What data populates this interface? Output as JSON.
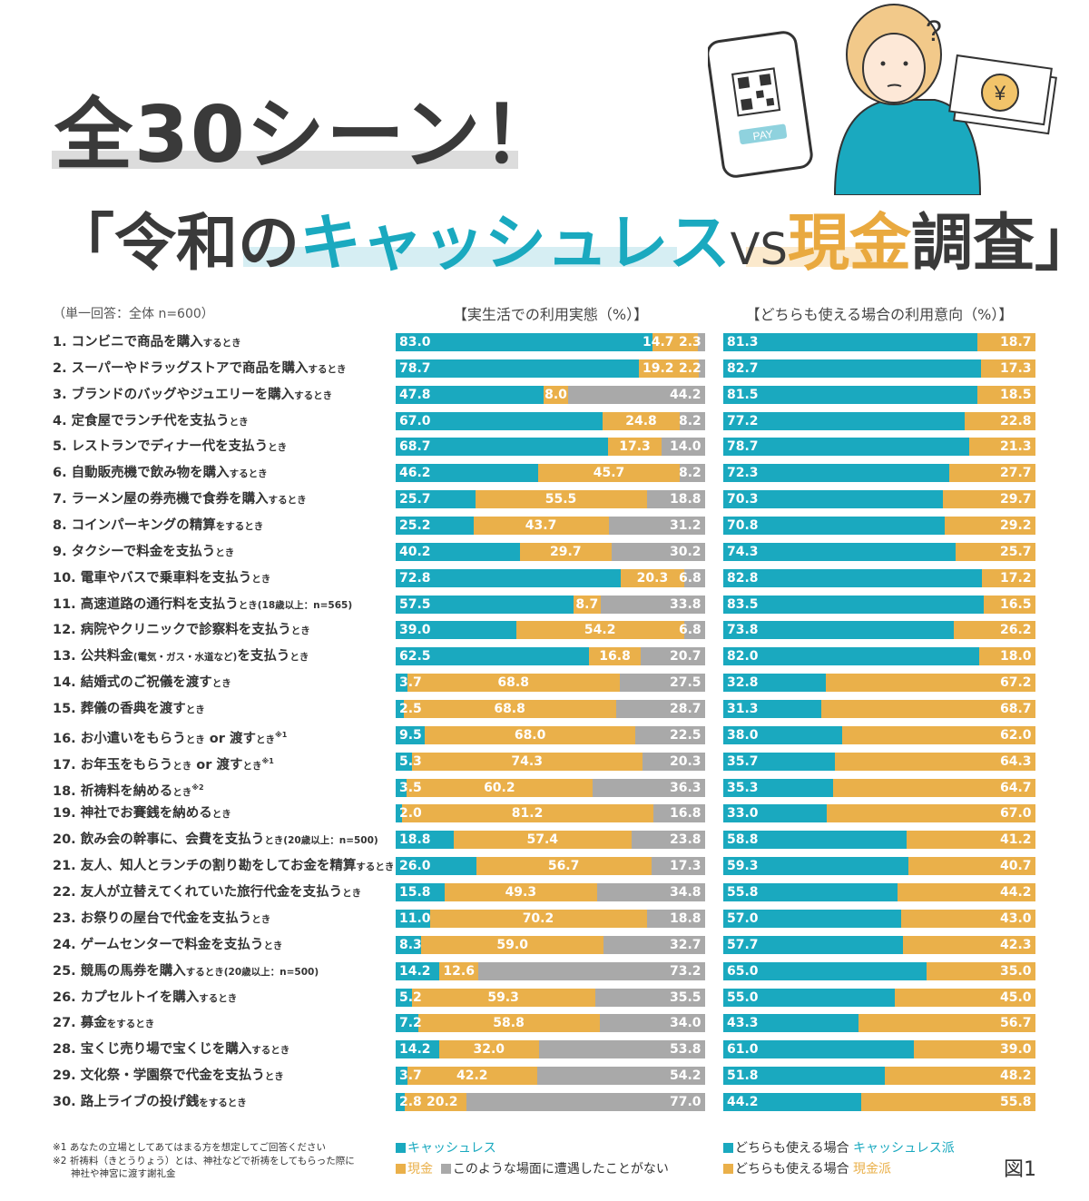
{
  "header": {
    "title_line1": "全30シーン！",
    "title_line2_open": "「令和の",
    "title_line2_cashless": "キャッシュレス",
    "title_line2_vs": "VS",
    "title_line2_cash": "現金",
    "title_line2_rest": "調査",
    "title_line2_close": "」",
    "illustration_pay_label": "PAY",
    "illustration_yen": "¥",
    "illustration_question": "?"
  },
  "colors": {
    "cashless": "#1aa9bf",
    "cash": "#eab04a",
    "never": "#a9a9a9"
  },
  "chart_data": [
    {
      "type": "bar",
      "stacked": true,
      "orientation": "horizontal",
      "title": "【実生活での利用実態（%）】",
      "subtitle": "（単一回答：全体 n=600）",
      "series": [
        {
          "name": "キャッシュレス",
          "values": [
            83.0,
            78.7,
            47.8,
            67.0,
            68.7,
            46.2,
            25.7,
            25.2,
            40.2,
            72.8,
            57.5,
            39.0,
            62.5,
            3.7,
            2.5,
            9.5,
            5.3,
            3.5,
            2.0,
            18.8,
            26.0,
            15.8,
            11.0,
            8.3,
            14.2,
            5.2,
            7.2,
            14.2,
            3.7,
            2.8
          ]
        },
        {
          "name": "現金",
          "values": [
            14.7,
            19.2,
            8.0,
            24.8,
            17.3,
            45.7,
            55.5,
            43.7,
            29.7,
            20.3,
            8.7,
            54.2,
            16.8,
            68.8,
            68.8,
            68.0,
            74.3,
            60.2,
            81.2,
            57.4,
            56.7,
            49.3,
            70.2,
            59.0,
            12.6,
            59.3,
            58.8,
            32.0,
            42.2,
            20.2
          ]
        },
        {
          "name": "このような場面に遭遇したことがない",
          "values": [
            2.3,
            2.2,
            44.2,
            8.2,
            14.0,
            8.2,
            18.8,
            31.2,
            30.2,
            6.8,
            33.8,
            6.8,
            20.7,
            27.5,
            28.7,
            22.5,
            20.3,
            36.3,
            16.8,
            23.8,
            17.3,
            34.8,
            18.8,
            32.7,
            73.2,
            35.5,
            34.0,
            53.8,
            54.2,
            77.0
          ]
        }
      ],
      "xlim": [
        0,
        100
      ]
    },
    {
      "type": "bar",
      "stacked": true,
      "orientation": "horizontal",
      "title": "【どちらも使える場合の利用意向（%）】",
      "series": [
        {
          "name": "どちらも使える場合 キャッシュレス派",
          "values": [
            81.3,
            82.7,
            81.5,
            77.2,
            78.7,
            72.3,
            70.3,
            70.8,
            74.3,
            82.8,
            83.5,
            73.8,
            82.0,
            32.8,
            31.3,
            38.0,
            35.7,
            35.3,
            33.0,
            58.8,
            59.3,
            55.8,
            57.0,
            57.7,
            65.0,
            55.0,
            43.3,
            61.0,
            51.8,
            44.2
          ]
        },
        {
          "name": "どちらも使える場合 現金派",
          "values": [
            18.7,
            17.3,
            18.5,
            22.8,
            21.3,
            27.7,
            29.7,
            29.2,
            25.7,
            17.2,
            16.5,
            26.2,
            18.0,
            67.2,
            68.7,
            62.0,
            64.3,
            64.7,
            67.0,
            41.2,
            40.7,
            44.2,
            43.0,
            42.3,
            35.0,
            45.0,
            56.7,
            39.0,
            48.2,
            55.8
          ]
        }
      ],
      "xlim": [
        0,
        100
      ]
    }
  ],
  "rows": [
    [
      [
        "1. コンビニで商品を購入",
        0
      ],
      [
        "するとき",
        1
      ]
    ],
    [
      [
        "2. スーパーやドラッグストアで商品を購入",
        0
      ],
      [
        "するとき",
        1
      ]
    ],
    [
      [
        "3. ブランドのバッグやジュエリーを購入",
        0
      ],
      [
        "するとき",
        1
      ]
    ],
    [
      [
        "4. 定食屋でランチ代を支払う",
        0
      ],
      [
        "とき",
        1
      ]
    ],
    [
      [
        "5. レストランでディナー代を支払う",
        0
      ],
      [
        "とき",
        1
      ]
    ],
    [
      [
        "6. 自動販売機で飲み物を購入",
        0
      ],
      [
        "するとき",
        1
      ]
    ],
    [
      [
        "7. ラーメン屋の券売機で食券を購入",
        0
      ],
      [
        "するとき",
        1
      ]
    ],
    [
      [
        "8. コインパーキングの精算",
        0
      ],
      [
        "をするとき",
        1
      ]
    ],
    [
      [
        "9. タクシーで料金を支払う",
        0
      ],
      [
        "とき",
        1
      ]
    ],
    [
      [
        "10. 電車やバスで乗車料を支払う",
        0
      ],
      [
        "とき",
        1
      ]
    ],
    [
      [
        "11. 高速道路の通行料を支払う",
        0
      ],
      [
        "とき(18歳以上：n=565)",
        1
      ]
    ],
    [
      [
        "12. 病院やクリニックで診察料を支払う",
        0
      ],
      [
        "とき",
        1
      ]
    ],
    [
      [
        "13. 公共料金",
        0
      ],
      [
        "(電気・ガス・水道など)",
        1
      ],
      [
        "を支払う",
        0
      ],
      [
        "とき",
        1
      ]
    ],
    [
      [
        "14. 結婚式のご祝儀を渡す",
        0
      ],
      [
        "とき",
        1
      ]
    ],
    [
      [
        "15. 葬儀の香典を渡す",
        0
      ],
      [
        "とき",
        1
      ]
    ],
    [
      [
        "16. お小遣いをもらう",
        0
      ],
      [
        "とき",
        1
      ],
      [
        " or 渡す",
        0
      ],
      [
        "とき",
        1
      ],
      [
        "※1",
        2
      ]
    ],
    [
      [
        "17. お年玉をもらう",
        0
      ],
      [
        "とき",
        1
      ],
      [
        " or 渡す",
        0
      ],
      [
        "とき",
        1
      ],
      [
        "※1",
        2
      ]
    ],
    [
      [
        "18. 祈祷料を納める",
        0
      ],
      [
        "とき",
        1
      ],
      [
        "※2",
        2
      ]
    ],
    [
      [
        "19. 神社でお賽銭を納める",
        0
      ],
      [
        "とき",
        1
      ]
    ],
    [
      [
        "20. 飲み会の幹事に、会費を支払う",
        0
      ],
      [
        "とき(20歳以上：n=500)",
        1
      ]
    ],
    [
      [
        "21. 友人、知人とランチの割り勘をしてお金を精算",
        0
      ],
      [
        "するとき",
        1
      ]
    ],
    [
      [
        "22. 友人が立替えてくれていた旅行代金を支払う",
        0
      ],
      [
        "とき",
        1
      ]
    ],
    [
      [
        "23. お祭りの屋台で代金を支払う",
        0
      ],
      [
        "とき",
        1
      ]
    ],
    [
      [
        "24. ゲームセンターで料金を支払う",
        0
      ],
      [
        "とき",
        1
      ]
    ],
    [
      [
        "25. 競馬の馬券を購入",
        0
      ],
      [
        "するとき(20歳以上：n=500)",
        1
      ]
    ],
    [
      [
        "26. カプセルトイを購入",
        0
      ],
      [
        "するとき",
        1
      ]
    ],
    [
      [
        "27. 募金",
        0
      ],
      [
        "をするとき",
        1
      ]
    ],
    [
      [
        "28. 宝くじ売り場で宝くじを購入",
        0
      ],
      [
        "するとき",
        1
      ]
    ],
    [
      [
        "29. 文化祭・学園祭で代金を支払う",
        0
      ],
      [
        "とき",
        1
      ]
    ],
    [
      [
        "30. 路上ライブの投げ銭",
        0
      ],
      [
        "をするとき",
        1
      ]
    ]
  ],
  "legend": {
    "left_cashless": "キャッシュレス",
    "left_cash": "現金",
    "left_never": "このような場面に遭遇したことがない",
    "right_prefix": "どちらも使える場合 ",
    "right_cashless": "キャッシュレス派",
    "right_cash": "現金派"
  },
  "footnotes": {
    "note1": "※1 あなたの立場としてあてはまる方を想定してご回答ください",
    "note2a": "※2 祈祷料（きとうりょう）とは、神社などで祈祷をしてもらった際に",
    "note2b": "神社や神宮に渡す謝礼金"
  },
  "figure_label": "図1"
}
